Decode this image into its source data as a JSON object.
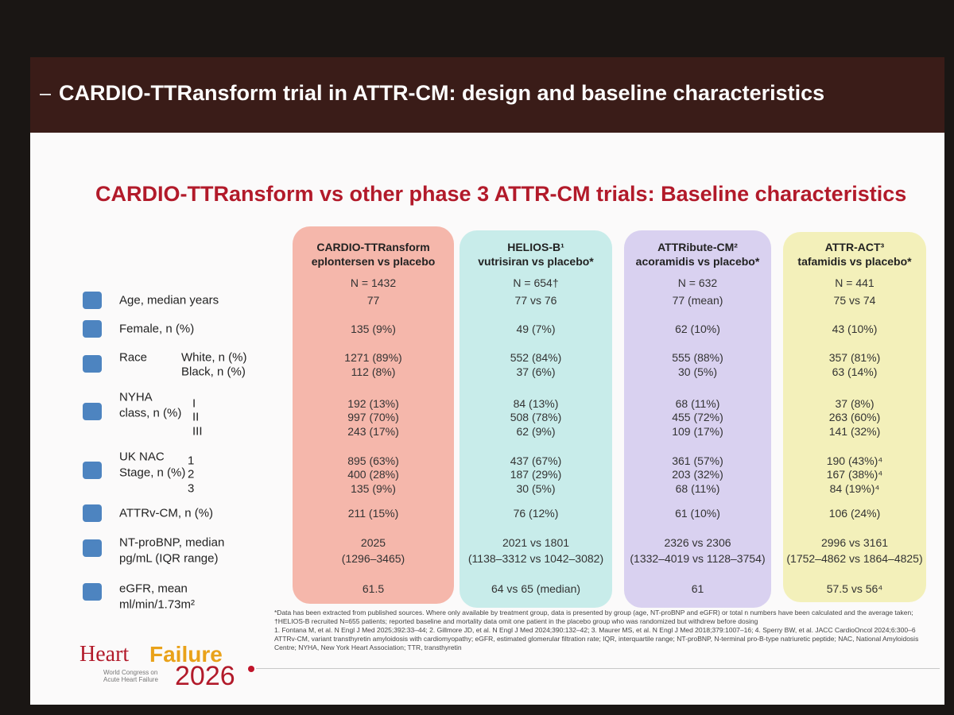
{
  "header": {
    "title": "CARDIO-TTRansform trial in ATTR-CM: design and baseline characteristics"
  },
  "slide": {
    "title": "CARDIO-TTRansform vs other phase 3 ATTR-CM trials: Baseline characteristics"
  },
  "rows": [
    {
      "label": [
        "Age, median years"
      ]
    },
    {
      "label": [
        "Female, n (%)"
      ]
    },
    {
      "label": [
        "Race"
      ],
      "sublabels": [
        "White, n (%)",
        "Black, n (%)"
      ]
    },
    {
      "label": [
        "NYHA",
        "class, n (%)"
      ],
      "sublabels": [
        "I",
        "II",
        "III"
      ]
    },
    {
      "label": [
        "UK NAC",
        "Stage, n (%)"
      ],
      "sublabels": [
        "1",
        "2",
        "3"
      ]
    },
    {
      "label": [
        "ATTRv-CM, n (%)"
      ]
    },
    {
      "label": [
        "NT-proBNP, median",
        "pg/mL (IQR range)"
      ]
    },
    {
      "label": [
        "eGFR, mean",
        "ml/min/1.73m²"
      ]
    }
  ],
  "trials": [
    {
      "name": "CARDIO-TTRansform",
      "comparison": "eplontersen vs placebo",
      "n": "N = 1432",
      "values": [
        [
          "77"
        ],
        [
          "135 (9%)"
        ],
        [
          "1271 (89%)",
          "112 (8%)"
        ],
        [
          "192 (13%)",
          "997 (70%)",
          "243 (17%)"
        ],
        [
          "895 (63%)",
          "400 (28%)",
          "135 (9%)"
        ],
        [
          "211 (15%)"
        ],
        [
          "2025",
          "(1296–3465)"
        ],
        [
          "61.5"
        ]
      ]
    },
    {
      "name": "HELIOS-B¹",
      "comparison": "vutrisiran vs placebo*",
      "n": "N = 654†",
      "values": [
        [
          "77 vs 76"
        ],
        [
          "49 (7%)"
        ],
        [
          "552 (84%)",
          "37 (6%)"
        ],
        [
          "84 (13%)",
          "508 (78%)",
          "62 (9%)"
        ],
        [
          "437 (67%)",
          "187 (29%)",
          "30 (5%)"
        ],
        [
          "76 (12%)"
        ],
        [
          "2021 vs 1801",
          "(1138–3312 vs 1042–3082)"
        ],
        [
          "64 vs 65 (median)"
        ]
      ]
    },
    {
      "name": "ATTRibute-CM²",
      "comparison": "acoramidis vs placebo*",
      "n": "N = 632",
      "values": [
        [
          "77 (mean)"
        ],
        [
          "62 (10%)"
        ],
        [
          "555 (88%)",
          "30 (5%)"
        ],
        [
          "68 (11%)",
          "455 (72%)",
          "109 (17%)"
        ],
        [
          "361 (57%)",
          "203 (32%)",
          "68 (11%)"
        ],
        [
          "61 (10%)"
        ],
        [
          "2326 vs 2306",
          "(1332–4019 vs 1128–3754)"
        ],
        [
          "61"
        ]
      ]
    },
    {
      "name": "ATTR-ACT³",
      "comparison": "tafamidis vs placebo*",
      "n": "N = 441",
      "values": [
        [
          "75 vs 74"
        ],
        [
          "43 (10%)"
        ],
        [
          "357 (81%)",
          "63 (14%)"
        ],
        [
          "37 (8%)",
          "263 (60%)",
          "141 (32%)"
        ],
        [
          "190 (43%)⁴",
          "167 (38%)⁴",
          "84 (19%)⁴"
        ],
        [
          "106 (24%)"
        ],
        [
          "2996 vs 3161",
          "(1752–4862 vs 1864–4825)"
        ],
        [
          "57.5 vs 56⁴"
        ]
      ]
    }
  ],
  "footnotes": [
    "*Data has been extracted from published sources. Where only available by treatment group, data is presented by group (age, NT-proBNP and eGFR) or total n numbers have been calculated and the average taken; †HELIOS-B recruited N=655 patients; reported baseline and mortality data omit one patient in the placebo group who was randomized but withdrew before dosing",
    "1. Fontana M, et al. N Engl J Med 2025;392:33–44; 2. Gillmore JD, et al. N Engl J Med 2024;390:132–42; 3. Maurer MS, et al. N Engl J Med 2018;379:1007–16; 4. Sperry BW, et al. JACC CardioOncol 2024;6:300–6",
    "ATTRv-CM, variant transthyretin amyloidosis with cardiomyopathy; eGFR, estimated glomerular filtration rate; IQR, interquartile range; NT-proBNP, N-terminal pro-B-type natriuretic peptide; NAC, National Amyloidosis Centre; NYHA, New York Heart Association; TTR, transthyretin"
  ],
  "logo": {
    "word1": "Heart",
    "word2": "Failure",
    "tagline": "World Congress on Acute Heart Failure",
    "year": "2026"
  }
}
